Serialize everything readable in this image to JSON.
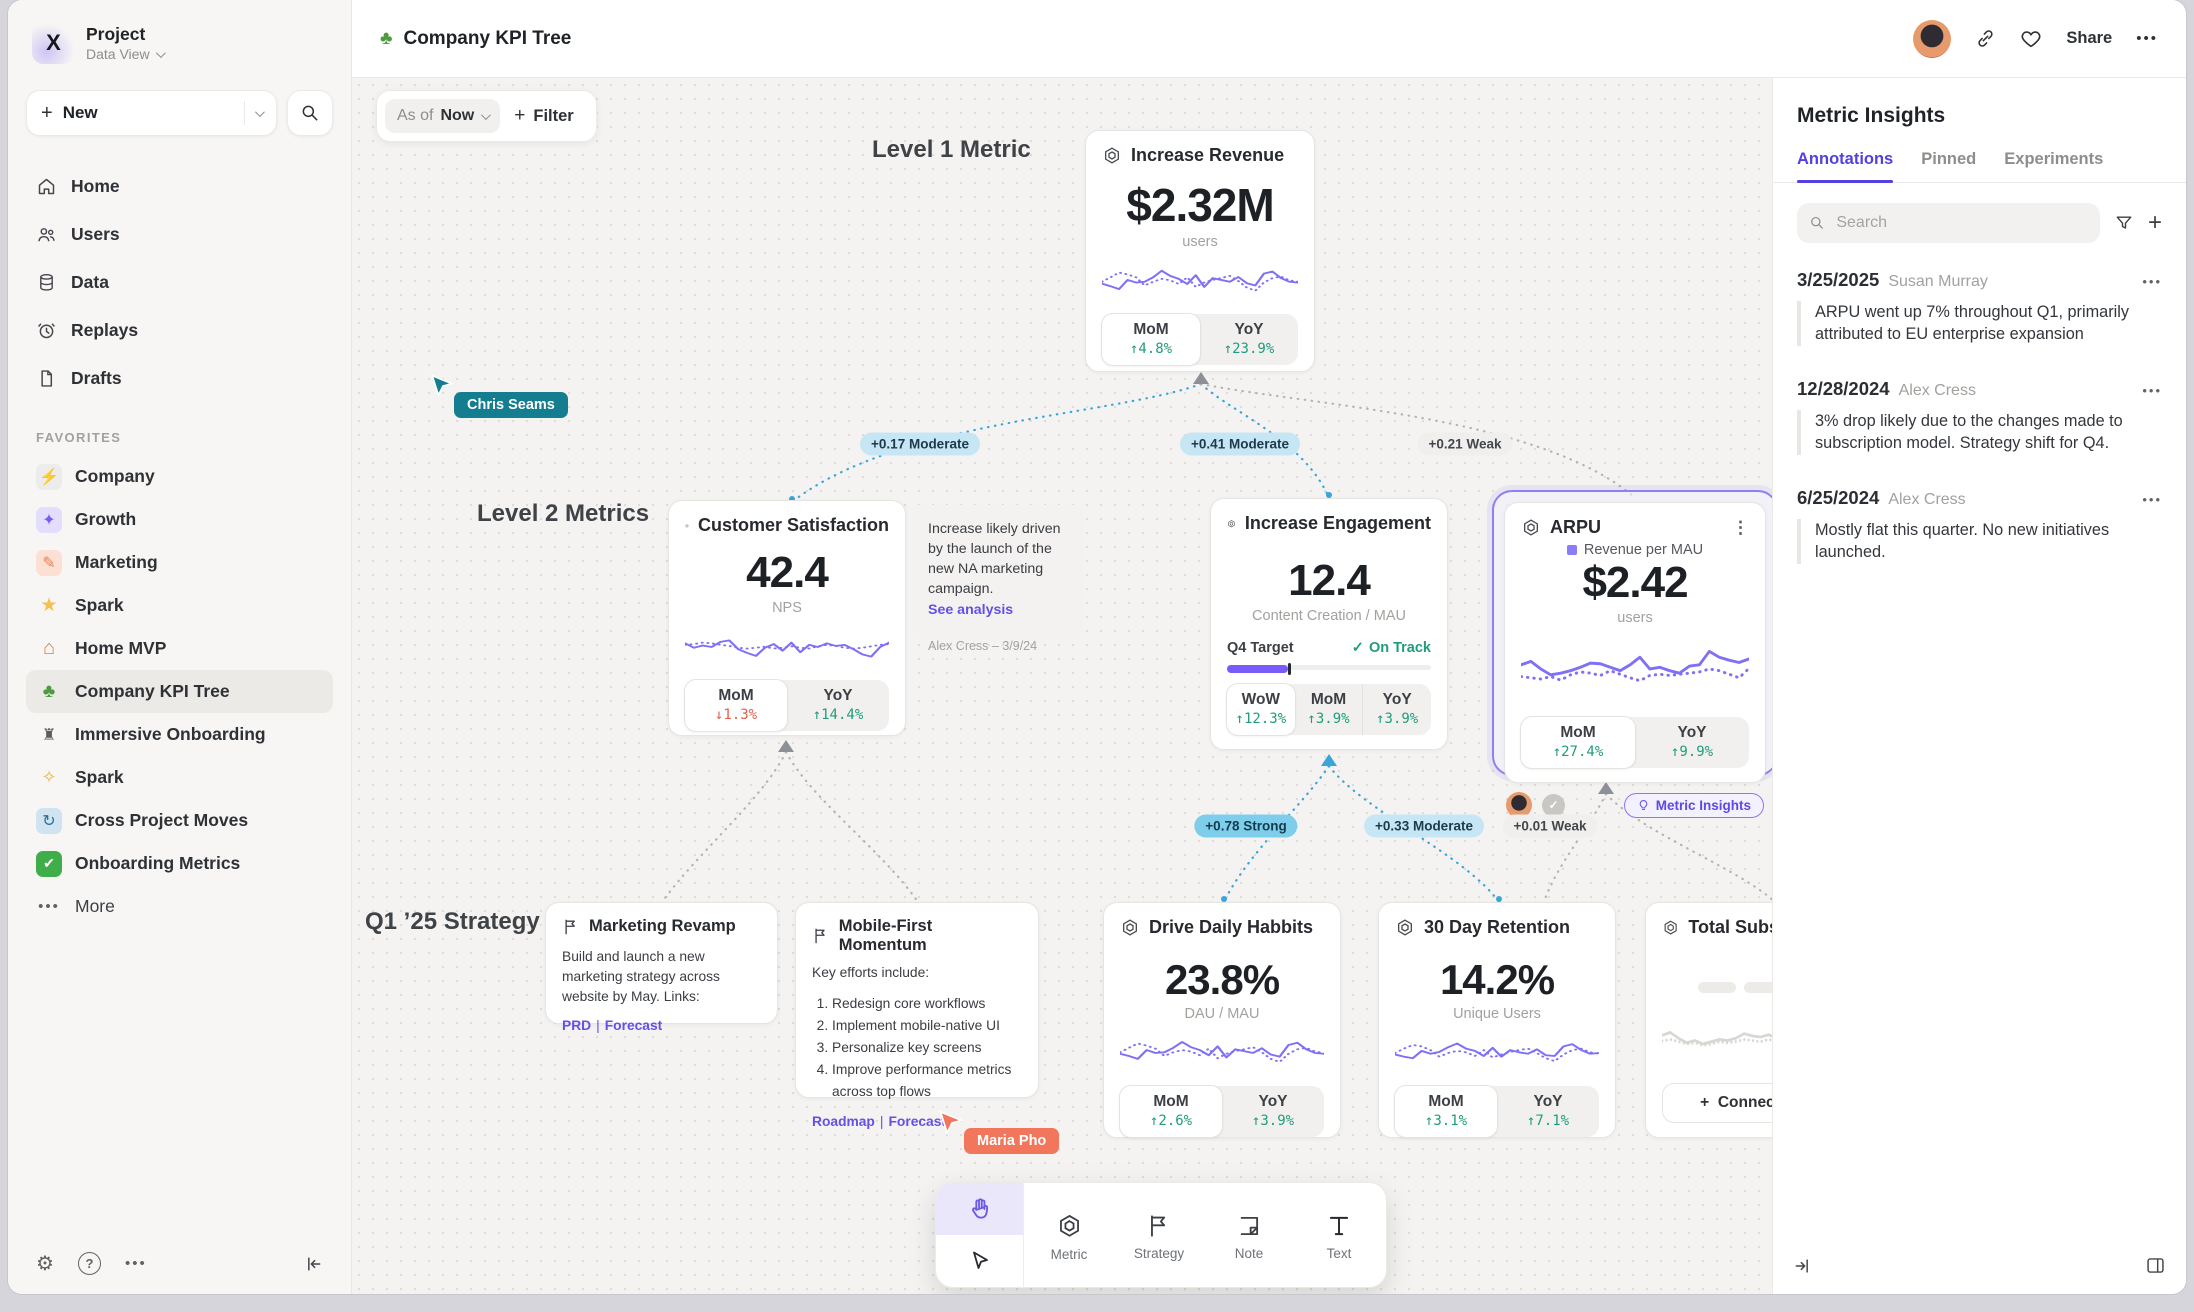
{
  "icons": {
    "kebab": "⋮",
    "meatballs": "•••",
    "gear": "⚙",
    "help": "?",
    "plus": "+",
    "check": "✓"
  },
  "sidebar": {
    "logo_glyph": "X",
    "workspace_name": "Project",
    "workspace_view": "Data View",
    "new_label": "New",
    "nav": [
      {
        "label": "Home"
      },
      {
        "label": "Users"
      },
      {
        "label": "Data"
      },
      {
        "label": "Replays"
      },
      {
        "label": "Drafts"
      }
    ],
    "favorites_header": "FAVORITES",
    "favorites": [
      {
        "label": "Company",
        "glyph": "⚡",
        "tile": "#ececea",
        "glyph_color": "#6b6e73"
      },
      {
        "label": "Growth",
        "glyph": "✦",
        "tile": "#e3defc",
        "glyph_color": "#7a5af8"
      },
      {
        "label": "Marketing",
        "glyph": "✎",
        "tile": "#fbe0d3",
        "glyph_color": "#e8825a"
      },
      {
        "label": "Spark",
        "glyph": "★",
        "tile": "transparent",
        "glyph_color": "#f2c14e"
      },
      {
        "label": "Home MVP",
        "glyph": "⌂",
        "tile": "transparent",
        "glyph_color": "#c98550"
      },
      {
        "label": "Company KPI Tree",
        "glyph": "♣",
        "tile": "transparent",
        "glyph_color": "#4e9b3f",
        "active": true
      },
      {
        "label": "Immersive Onboarding",
        "glyph": "♜",
        "tile": "transparent",
        "glyph_color": "#5a5d62"
      },
      {
        "label": "Spark",
        "glyph": "✧",
        "tile": "transparent",
        "glyph_color": "#e8b84b"
      },
      {
        "label": "Cross Project Moves",
        "glyph": "↻",
        "tile": "#cfe3f0",
        "glyph_color": "#2f6e96"
      },
      {
        "label": "Onboarding Metrics",
        "glyph": "✔",
        "tile": "#3fae49",
        "glyph_color": "#ffffff"
      }
    ],
    "more_label": "More"
  },
  "header": {
    "title": "Company KPI Tree",
    "title_glyph": "♣",
    "share_label": "Share"
  },
  "canvas": {
    "filter_bar": {
      "as_of_label": "As of",
      "as_of_value": "Now",
      "filter_label": "Filter"
    },
    "level1_label": "Level 1 Metric",
    "level2_label": "Level 2 Metrics",
    "strategy_label": "Q1 ’25 Strategy",
    "correlations": [
      {
        "text": "+0.17 Moderate"
      },
      {
        "text": "+0.41 Moderate"
      },
      {
        "text": "+0.21 Weak"
      },
      {
        "text": "+0.78 Strong"
      },
      {
        "text": "+0.33 Moderate"
      },
      {
        "text": "+0.01 Weak"
      }
    ],
    "cursors": [
      {
        "name": "Chris Seams",
        "color": "#147d90"
      },
      {
        "name": "Maria Pho",
        "color": "#f2765c"
      }
    ],
    "cards": {
      "revenue": {
        "title": "Increase Revenue",
        "value": "$2.32M",
        "unit": "users",
        "stats": [
          {
            "label": "MoM",
            "value": "↑4.8%",
            "trend": "up"
          },
          {
            "label": "YoY",
            "value": "↑23.9%",
            "trend": "up"
          }
        ],
        "spark": {
          "solid": [
            45,
            38,
            30,
            55,
            48,
            50,
            62,
            80,
            66,
            58,
            44,
            68,
            36,
            60,
            55,
            50,
            63,
            46,
            40,
            72,
            78,
            60,
            50,
            48
          ],
          "dotted": [
            50,
            62,
            75,
            70,
            62,
            40,
            50,
            58,
            54,
            44,
            62,
            36,
            48,
            55,
            60,
            66,
            52,
            34,
            26,
            48,
            60,
            64,
            54,
            50
          ]
        }
      },
      "satisfaction": {
        "title": "Customer Satisfaction",
        "value": "42.4",
        "unit": "NPS",
        "stats": [
          {
            "label": "MoM",
            "value": "↓1.3%",
            "trend": "down"
          },
          {
            "label": "YoY",
            "value": "↑14.4%",
            "trend": "up"
          }
        ],
        "spark": {
          "solid": [
            62,
            50,
            56,
            52,
            66,
            70,
            46,
            36,
            28,
            50,
            60,
            42,
            64,
            38,
            58,
            52,
            62,
            55,
            58,
            46,
            32,
            26,
            52,
            64
          ],
          "dotted": [
            58,
            60,
            64,
            62,
            58,
            55,
            50,
            48,
            50,
            53,
            48,
            50,
            54,
            50,
            48,
            54,
            58,
            55,
            50,
            48,
            50,
            54,
            58,
            60
          ]
        }
      },
      "note": {
        "text": "Increase likely driven by the launch of the new NA marketing campaign.",
        "link": "See analysis",
        "byline": "Alex Cress – 3/9/24"
      },
      "engagement": {
        "title": "Increase Engagement",
        "value": "12.4",
        "unit": "Content Creation / MAU",
        "target_label": "Q4 Target",
        "target_status": "On Track",
        "progress_pct": 30,
        "stats": [
          {
            "label": "WoW",
            "value": "↑12.3%",
            "trend": "up"
          },
          {
            "label": "MoM",
            "value": "↑3.9%",
            "trend": "up"
          },
          {
            "label": "YoY",
            "value": "↑3.9%",
            "trend": "up"
          }
        ]
      },
      "arpu": {
        "title": "ARPU",
        "legend": "Revenue per MAU",
        "value": "$2.42",
        "unit": "users",
        "stats": [
          {
            "label": "MoM",
            "value": "↑27.4%",
            "trend": "up"
          },
          {
            "label": "YoY",
            "value": "↑9.9%",
            "trend": "up"
          }
        ],
        "insights_label": "Metric Insights",
        "spark": {
          "solid": [
            62,
            68,
            55,
            45,
            48,
            52,
            58,
            65,
            64,
            58,
            52,
            62,
            75,
            55,
            58,
            52,
            48,
            60,
            62,
            85,
            75,
            70,
            66,
            72
          ],
          "dotted": [
            42,
            40,
            38,
            42,
            36,
            45,
            50,
            48,
            44,
            52,
            46,
            40,
            35,
            44,
            46,
            44,
            46,
            48,
            50,
            55,
            52,
            46,
            40,
            56
          ]
        }
      },
      "marketing_revamp": {
        "title": "Marketing Revamp",
        "body": "Build and launch a new marketing strategy across website by May. Links:",
        "link1": "PRD",
        "separator": "|",
        "link2": "Forecast"
      },
      "mobile_first": {
        "title": "Mobile-First Momentum",
        "intro": "Key efforts include:",
        "items": [
          "Redesign core workflows",
          "Implement mobile-native UI",
          "Personalize key screens",
          "Improve performance metrics across top flows"
        ],
        "link1": "Roadmap",
        "separator": "|",
        "link2": "Forecast"
      },
      "daily_habits": {
        "title": "Drive Daily Habbits",
        "value": "23.8%",
        "unit": "DAU / MAU",
        "stats": [
          {
            "label": "MoM",
            "value": "↑2.6%",
            "trend": "up"
          },
          {
            "label": "YoY",
            "value": "↑3.9%",
            "trend": "up"
          }
        ],
        "spark": {
          "solid": [
            50,
            44,
            36,
            60,
            52,
            54,
            66,
            82,
            68,
            60,
            46,
            70,
            40,
            62,
            57,
            52,
            65,
            48,
            42,
            74,
            80,
            62,
            52,
            50
          ],
          "dotted": [
            54,
            66,
            78,
            72,
            64,
            44,
            54,
            60,
            56,
            46,
            64,
            38,
            50,
            57,
            62,
            68,
            54,
            36,
            28,
            50,
            62,
            66,
            56,
            52
          ]
        }
      },
      "retention": {
        "title": "30 Day Retention",
        "value": "14.2%",
        "unit": "Unique Users",
        "stats": [
          {
            "label": "MoM",
            "value": "↑3.1%",
            "trend": "up"
          },
          {
            "label": "YoY",
            "value": "↑7.1%",
            "trend": "up"
          }
        ],
        "spark": {
          "solid": [
            48,
            42,
            38,
            58,
            50,
            55,
            68,
            78,
            64,
            58,
            44,
            66,
            42,
            60,
            54,
            50,
            62,
            46,
            44,
            70,
            76,
            60,
            50,
            52
          ],
          "dotted": [
            52,
            64,
            74,
            70,
            60,
            42,
            52,
            58,
            54,
            44,
            60,
            40,
            48,
            55,
            60,
            64,
            52,
            38,
            30,
            48,
            60,
            64,
            54,
            50
          ]
        }
      },
      "total_subs": {
        "title": "Total Subscript",
        "connect_label": "Connect",
        "spark": {
          "color": "#d9d7d3",
          "solid": [
            55,
            60,
            50,
            42,
            46,
            40,
            44,
            48,
            46,
            50,
            58,
            54,
            52,
            56,
            50,
            48,
            62,
            55,
            42,
            40
          ],
          "dotted": [
            45,
            48,
            44,
            40,
            42,
            38,
            40,
            44,
            42,
            44,
            48,
            46,
            44,
            48,
            44,
            42,
            50,
            46,
            38,
            36
          ]
        }
      }
    },
    "tool_palette": {
      "tools": [
        {
          "label": "Metric"
        },
        {
          "label": "Strategy"
        },
        {
          "label": "Note"
        },
        {
          "label": "Text"
        }
      ]
    }
  },
  "insights_panel": {
    "title": "Metric Insights",
    "tabs": [
      {
        "label": "Annotations"
      },
      {
        "label": "Pinned"
      },
      {
        "label": "Experiments"
      }
    ],
    "search_placeholder": "Search",
    "annotations": [
      {
        "date": "3/25/2025",
        "author": "Susan Murray",
        "text": "ARPU went up 7% throughout Q1, primarily attributed to EU enterprise expansion"
      },
      {
        "date": "12/28/2024",
        "author": "Alex Cress",
        "text": "3% drop likely due to the changes made to subscription model. Strategy shift for Q4."
      },
      {
        "date": "6/25/2024",
        "author": "Alex Cress",
        "text": "Mostly flat this quarter. No new initiatives launched."
      }
    ]
  }
}
